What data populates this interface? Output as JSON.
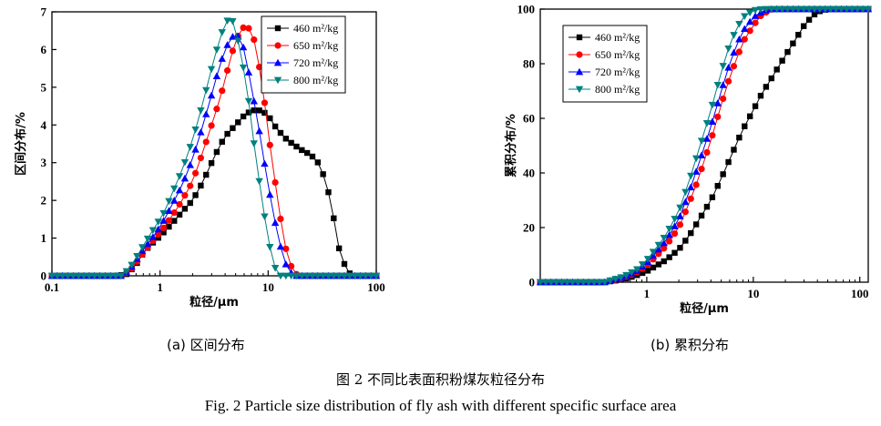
{
  "chart_data": [
    {
      "type": "line",
      "subcaption": "(a) 区间分布",
      "xlabel": "粒径/μm",
      "ylabel": "区间分布/%",
      "xscale": "log",
      "xlim": [
        0.1,
        100
      ],
      "ylim": [
        0,
        7
      ],
      "xticks": [
        "0.1",
        "1",
        "10",
        "100"
      ],
      "yticks": [
        "0",
        "1",
        "2",
        "3",
        "4",
        "5",
        "6",
        "7"
      ],
      "legend_position": "top-right",
      "series": [
        {
          "name": "460 m²/kg",
          "color": "#000000",
          "marker": "square",
          "points": [
            [
              0.1,
              0
            ],
            [
              0.4,
              0
            ],
            [
              0.5,
              0.05
            ],
            [
              0.6,
              0.3
            ],
            [
              0.7,
              0.6
            ],
            [
              0.8,
              0.8
            ],
            [
              1,
              1.05
            ],
            [
              1.3,
              1.4
            ],
            [
              1.6,
              1.7
            ],
            [
              2,
              2.0
            ],
            [
              2.5,
              2.5
            ],
            [
              3,
              3.0
            ],
            [
              3.5,
              3.4
            ],
            [
              4,
              3.7
            ],
            [
              5,
              4.0
            ],
            [
              6,
              4.25
            ],
            [
              7,
              4.38
            ],
            [
              8,
              4.4
            ],
            [
              9,
              4.35
            ],
            [
              10,
              4.25
            ],
            [
              12,
              3.9
            ],
            [
              15,
              3.6
            ],
            [
              20,
              3.35
            ],
            [
              25,
              3.2
            ],
            [
              30,
              2.95
            ],
            [
              35,
              2.4
            ],
            [
              40,
              1.6
            ],
            [
              45,
              0.75
            ],
            [
              50,
              0.35
            ],
            [
              55,
              0.1
            ],
            [
              60,
              0
            ],
            [
              100,
              0
            ]
          ]
        },
        {
          "name": "650 m²/kg",
          "color": "#ff0000",
          "marker": "circle",
          "points": [
            [
              0.1,
              0
            ],
            [
              0.45,
              0
            ],
            [
              0.55,
              0.2
            ],
            [
              0.7,
              0.6
            ],
            [
              0.9,
              1.0
            ],
            [
              1.1,
              1.3
            ],
            [
              1.3,
              1.6
            ],
            [
              1.6,
              2.0
            ],
            [
              2,
              2.5
            ],
            [
              2.5,
              3.3
            ],
            [
              3,
              4.0
            ],
            [
              3.5,
              4.6
            ],
            [
              4,
              5.2
            ],
            [
              4.5,
              5.8
            ],
            [
              5,
              6.2
            ],
            [
              5.5,
              6.5
            ],
            [
              6,
              6.6
            ],
            [
              6.5,
              6.58
            ],
            [
              7,
              6.5
            ],
            [
              7.5,
              6.2
            ],
            [
              8,
              5.8
            ],
            [
              9,
              4.9
            ],
            [
              10,
              3.8
            ],
            [
              12,
              2.2
            ],
            [
              14,
              0.9
            ],
            [
              16,
              0.3
            ],
            [
              18,
              0.05
            ],
            [
              20,
              0
            ],
            [
              100,
              0
            ]
          ]
        },
        {
          "name": "720 m²/kg",
          "color": "#0000ff",
          "marker": "triangle-up",
          "points": [
            [
              0.1,
              0
            ],
            [
              0.45,
              0
            ],
            [
              0.55,
              0.25
            ],
            [
              0.7,
              0.7
            ],
            [
              0.9,
              1.1
            ],
            [
              1.1,
              1.5
            ],
            [
              1.3,
              1.9
            ],
            [
              1.6,
              2.4
            ],
            [
              2,
              3.1
            ],
            [
              2.5,
              4.0
            ],
            [
              3,
              4.8
            ],
            [
              3.5,
              5.5
            ],
            [
              4,
              6.0
            ],
            [
              4.5,
              6.3
            ],
            [
              5,
              6.4
            ],
            [
              5.5,
              6.3
            ],
            [
              6,
              6.0
            ],
            [
              6.5,
              5.5
            ],
            [
              7,
              5.0
            ],
            [
              8,
              4.1
            ],
            [
              9,
              3.2
            ],
            [
              10,
              2.4
            ],
            [
              12,
              1.2
            ],
            [
              14,
              0.4
            ],
            [
              16,
              0.1
            ],
            [
              18,
              0
            ],
            [
              100,
              0
            ]
          ]
        },
        {
          "name": "800 m²/kg",
          "color": "#008080",
          "marker": "triangle-down",
          "points": [
            [
              0.1,
              0
            ],
            [
              0.45,
              0
            ],
            [
              0.55,
              0.3
            ],
            [
              0.7,
              0.8
            ],
            [
              0.9,
              1.3
            ],
            [
              1.1,
              1.7
            ],
            [
              1.3,
              2.2
            ],
            [
              1.6,
              2.8
            ],
            [
              2,
              3.6
            ],
            [
              2.5,
              4.6
            ],
            [
              3,
              5.5
            ],
            [
              3.5,
              6.2
            ],
            [
              4,
              6.7
            ],
            [
              4.3,
              6.8
            ],
            [
              4.7,
              6.75
            ],
            [
              5,
              6.5
            ],
            [
              5.5,
              6.0
            ],
            [
              6,
              5.4
            ],
            [
              6.5,
              4.8
            ],
            [
              7,
              4.0
            ],
            [
              8,
              2.8
            ],
            [
              9,
              1.8
            ],
            [
              10,
              1.0
            ],
            [
              11,
              0.4
            ],
            [
              12,
              0.1
            ],
            [
              13,
              0
            ],
            [
              100,
              0
            ]
          ]
        }
      ]
    },
    {
      "type": "line",
      "subcaption": "(b) 累积分布",
      "xlabel": "粒径/μm",
      "ylabel": "累积分布/%",
      "xscale": "log",
      "xlim": [
        0.1,
        120
      ],
      "ylim": [
        0,
        100
      ],
      "xticks": [
        "1",
        "10",
        "100"
      ],
      "yticks": [
        "0",
        "20",
        "40",
        "60",
        "80",
        "100"
      ],
      "legend_position": "top-left",
      "series": [
        {
          "name": "460 m²/kg",
          "color": "#000000",
          "marker": "square",
          "points": [
            [
              0.1,
              0
            ],
            [
              0.4,
              0
            ],
            [
              0.6,
              1
            ],
            [
              0.8,
              2.5
            ],
            [
              1,
              4
            ],
            [
              1.5,
              8
            ],
            [
              2,
              12
            ],
            [
              2.5,
              17
            ],
            [
              3,
              22
            ],
            [
              4,
              30
            ],
            [
              5,
              38
            ],
            [
              6,
              45
            ],
            [
              7,
              51
            ],
            [
              8,
              56
            ],
            [
              10,
              63
            ],
            [
              12,
              69
            ],
            [
              15,
              75
            ],
            [
              20,
              83
            ],
            [
              25,
              89
            ],
            [
              30,
              94
            ],
            [
              35,
              97
            ],
            [
              40,
              99
            ],
            [
              50,
              100
            ],
            [
              120,
              100
            ]
          ]
        },
        {
          "name": "650 m²/kg",
          "color": "#ff0000",
          "marker": "circle",
          "points": [
            [
              0.1,
              0
            ],
            [
              0.4,
              0
            ],
            [
              0.6,
              1.5
            ],
            [
              0.8,
              3.5
            ],
            [
              1,
              6
            ],
            [
              1.5,
              13
            ],
            [
              2,
              20
            ],
            [
              2.5,
              29
            ],
            [
              3,
              37
            ],
            [
              4,
              52
            ],
            [
              5,
              65
            ],
            [
              6,
              75
            ],
            [
              7,
              82
            ],
            [
              8,
              88
            ],
            [
              10,
              94
            ],
            [
              12,
              98
            ],
            [
              15,
              100
            ],
            [
              120,
              100
            ]
          ]
        },
        {
          "name": "720 m²/kg",
          "color": "#0000ff",
          "marker": "triangle-up",
          "points": [
            [
              0.1,
              0
            ],
            [
              0.4,
              0
            ],
            [
              0.6,
              1.8
            ],
            [
              0.8,
              4
            ],
            [
              1,
              7
            ],
            [
              1.5,
              15
            ],
            [
              2,
              23
            ],
            [
              2.5,
              33
            ],
            [
              3,
              42
            ],
            [
              4,
              57
            ],
            [
              5,
              70
            ],
            [
              6,
              80
            ],
            [
              7,
              87
            ],
            [
              8,
              92
            ],
            [
              10,
              97
            ],
            [
              12,
              99
            ],
            [
              14,
              100
            ],
            [
              120,
              100
            ]
          ]
        },
        {
          "name": "800 m²/kg",
          "color": "#008080",
          "marker": "triangle-down",
          "points": [
            [
              0.1,
              0
            ],
            [
              0.4,
              0
            ],
            [
              0.6,
              2
            ],
            [
              0.8,
              4.5
            ],
            [
              1,
              8
            ],
            [
              1.5,
              17
            ],
            [
              2,
              26
            ],
            [
              2.5,
              37
            ],
            [
              3,
              47
            ],
            [
              4,
              63
            ],
            [
              5,
              77
            ],
            [
              6,
              87
            ],
            [
              7,
              93
            ],
            [
              8,
              97
            ],
            [
              10,
              99.5
            ],
            [
              12,
              100
            ],
            [
              120,
              100
            ]
          ]
        }
      ]
    }
  ],
  "captions": {
    "cn": "图 2  不同比表面积粉煤灰粒径分布",
    "en": "Fig. 2 Particle size distribution of fly ash with different specific surface area"
  }
}
